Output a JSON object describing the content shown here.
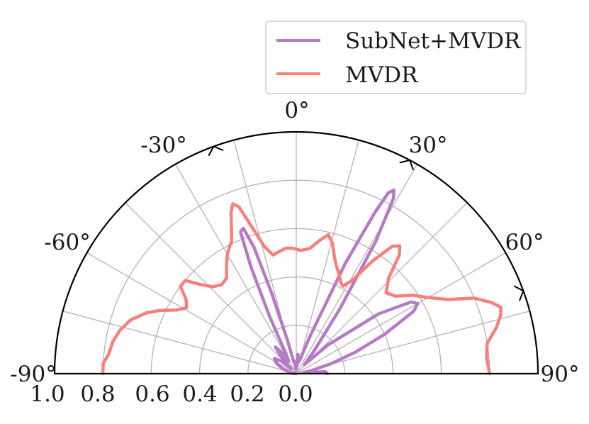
{
  "chart_data": {
    "type": "polar-line",
    "theta_range_deg": [
      -90,
      90
    ],
    "radial_range": [
      0,
      1.0
    ],
    "radial_ticks": [
      0.2,
      0.4,
      0.6,
      0.8,
      1.0
    ],
    "angular_tick_labels": [
      {
        "deg": -90,
        "label": "-90°"
      },
      {
        "deg": -60,
        "label": "-60°"
      },
      {
        "deg": -30,
        "label": "-30°"
      },
      {
        "deg": 0,
        "label": "0°"
      },
      {
        "deg": 30,
        "label": "30°"
      },
      {
        "deg": 60,
        "label": "60°"
      },
      {
        "deg": 90,
        "label": "90°"
      }
    ],
    "radial_tick_labels": [
      "1.0",
      "0.8",
      "0.6",
      "0.4",
      "0.2",
      "0.0"
    ],
    "grid": true,
    "legend": {
      "placement": "top-right"
    },
    "target_markers_deg": [
      -20,
      28,
      70
    ],
    "series": [
      {
        "name": "SubNet+MVDR",
        "color": "#b77ac4",
        "points": [
          {
            "theta": -90,
            "r": 0.0
          },
          {
            "theta": -85,
            "r": 0.01
          },
          {
            "theta": -80,
            "r": 0.02
          },
          {
            "theta": -75,
            "r": 0.04
          },
          {
            "theta": -70,
            "r": 0.06
          },
          {
            "theta": -65,
            "r": 0.08
          },
          {
            "theta": -60,
            "r": 0.1
          },
          {
            "theta": -55,
            "r": 0.11
          },
          {
            "theta": -50,
            "r": 0.08
          },
          {
            "theta": -46,
            "r": 0.03
          },
          {
            "theta": -42,
            "r": 0.09
          },
          {
            "theta": -38,
            "r": 0.14
          },
          {
            "theta": -35,
            "r": 0.11
          },
          {
            "theta": -32,
            "r": 0.06
          },
          {
            "theta": -28,
            "r": 0.08
          },
          {
            "theta": -25,
            "r": 0.26
          },
          {
            "theta": -23,
            "r": 0.48
          },
          {
            "theta": -21.5,
            "r": 0.63
          },
          {
            "theta": -20,
            "r": 0.64
          },
          {
            "theta": -18.5,
            "r": 0.55
          },
          {
            "theta": -17,
            "r": 0.35
          },
          {
            "theta": -15,
            "r": 0.15
          },
          {
            "theta": -12,
            "r": 0.05
          },
          {
            "theta": -8,
            "r": 0.05
          },
          {
            "theta": -5,
            "r": 0.02
          },
          {
            "theta": 0,
            "r": 0.03
          },
          {
            "theta": 5,
            "r": 0.08
          },
          {
            "theta": 10,
            "r": 0.05
          },
          {
            "theta": 15,
            "r": 0.06
          },
          {
            "theta": 20,
            "r": 0.16
          },
          {
            "theta": 24,
            "r": 0.5
          },
          {
            "theta": 26,
            "r": 0.74
          },
          {
            "theta": 27,
            "r": 0.84
          },
          {
            "theta": 28,
            "r": 0.86
          },
          {
            "theta": 29,
            "r": 0.83
          },
          {
            "theta": 31,
            "r": 0.64
          },
          {
            "theta": 34,
            "r": 0.32
          },
          {
            "theta": 38,
            "r": 0.12
          },
          {
            "theta": 42,
            "r": 0.05
          },
          {
            "theta": 48,
            "r": 0.18
          },
          {
            "theta": 54,
            "r": 0.42
          },
          {
            "theta": 58,
            "r": 0.56
          },
          {
            "theta": 60,
            "r": 0.58
          },
          {
            "theta": 62,
            "r": 0.55
          },
          {
            "theta": 66,
            "r": 0.4
          },
          {
            "theta": 70,
            "r": 0.26
          },
          {
            "theta": 74,
            "r": 0.15
          },
          {
            "theta": 78,
            "r": 0.07
          },
          {
            "theta": 82,
            "r": 0.03
          },
          {
            "theta": 86,
            "r": 0.12
          },
          {
            "theta": 90,
            "r": 0.13
          }
        ]
      },
      {
        "name": "MVDR",
        "color": "#f7807a",
        "points": [
          {
            "theta": -90,
            "r": 0.8
          },
          {
            "theta": -87,
            "r": 0.8
          },
          {
            "theta": -84,
            "r": 0.78
          },
          {
            "theta": -80,
            "r": 0.77
          },
          {
            "theta": -76,
            "r": 0.75
          },
          {
            "theta": -72,
            "r": 0.72
          },
          {
            "theta": -68,
            "r": 0.67
          },
          {
            "theta": -65,
            "r": 0.62
          },
          {
            "theta": -62,
            "r": 0.56
          },
          {
            "theta": -59,
            "r": 0.53
          },
          {
            "theta": -56,
            "r": 0.55
          },
          {
            "theta": -53,
            "r": 0.6
          },
          {
            "theta": -50,
            "r": 0.6
          },
          {
            "theta": -47,
            "r": 0.54
          },
          {
            "theta": -44,
            "r": 0.5
          },
          {
            "theta": -40,
            "r": 0.48
          },
          {
            "theta": -36,
            "r": 0.49
          },
          {
            "theta": -33,
            "r": 0.53
          },
          {
            "theta": -30,
            "r": 0.57
          },
          {
            "theta": -28,
            "r": 0.59
          },
          {
            "theta": -26,
            "r": 0.61
          },
          {
            "theta": -24,
            "r": 0.66
          },
          {
            "theta": -22,
            "r": 0.72
          },
          {
            "theta": -20.5,
            "r": 0.75
          },
          {
            "theta": -19,
            "r": 0.73
          },
          {
            "theta": -17,
            "r": 0.64
          },
          {
            "theta": -14,
            "r": 0.54
          },
          {
            "theta": -11,
            "r": 0.5
          },
          {
            "theta": -8,
            "r": 0.51
          },
          {
            "theta": -5,
            "r": 0.52
          },
          {
            "theta": -2,
            "r": 0.52
          },
          {
            "theta": 2,
            "r": 0.51
          },
          {
            "theta": 6,
            "r": 0.52
          },
          {
            "theta": 10,
            "r": 0.56
          },
          {
            "theta": 13,
            "r": 0.59
          },
          {
            "theta": 15.5,
            "r": 0.56
          },
          {
            "theta": 18,
            "r": 0.51
          },
          {
            "theta": 20,
            "r": 0.48
          },
          {
            "theta": 22,
            "r": 0.46
          },
          {
            "theta": 24,
            "r": 0.44
          },
          {
            "theta": 26,
            "r": 0.42
          },
          {
            "theta": 28,
            "r": 0.41
          },
          {
            "theta": 31,
            "r": 0.45
          },
          {
            "theta": 34,
            "r": 0.56
          },
          {
            "theta": 37,
            "r": 0.66
          },
          {
            "theta": 39,
            "r": 0.68
          },
          {
            "theta": 41,
            "r": 0.65
          },
          {
            "theta": 44,
            "r": 0.55
          },
          {
            "theta": 48,
            "r": 0.5
          },
          {
            "theta": 52,
            "r": 0.52
          },
          {
            "theta": 56,
            "r": 0.58
          },
          {
            "theta": 60,
            "r": 0.63
          },
          {
            "theta": 64,
            "r": 0.7
          },
          {
            "theta": 67,
            "r": 0.8
          },
          {
            "theta": 70,
            "r": 0.86
          },
          {
            "theta": 72,
            "r": 0.89
          },
          {
            "theta": 74,
            "r": 0.88
          },
          {
            "theta": 77,
            "r": 0.85
          },
          {
            "theta": 81,
            "r": 0.8
          },
          {
            "theta": 85,
            "r": 0.79
          },
          {
            "theta": 90,
            "r": 0.8
          }
        ]
      }
    ]
  }
}
